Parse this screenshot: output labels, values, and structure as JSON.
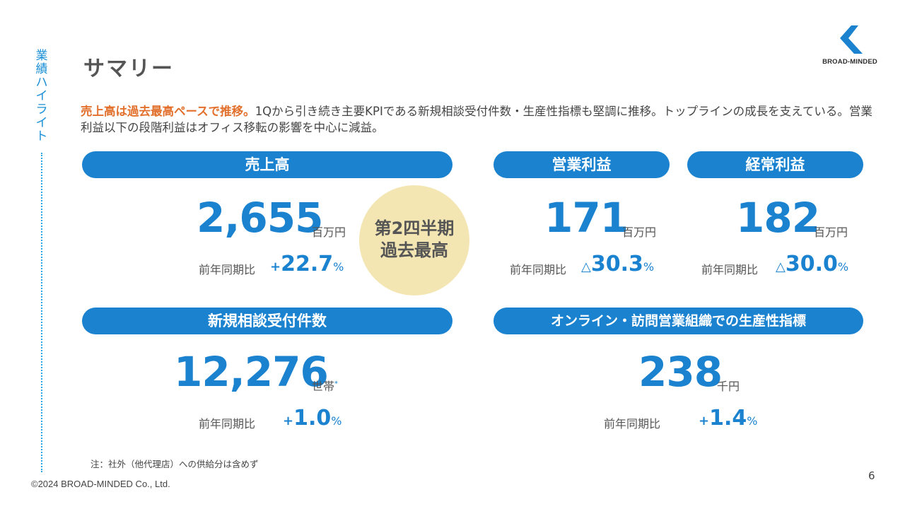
{
  "side": {
    "label_chars": [
      "業",
      "績",
      "ハ",
      "イ",
      "ラ",
      "イ",
      "ト"
    ]
  },
  "page_title": "サマリー",
  "logo": {
    "text": "BROAD-MINDED",
    "color": "#1a82cf"
  },
  "summary": {
    "highlight": "売上高は過去最高ペースで推移。",
    "text": "1Qから引き続き主要KPIである新規相談受付件数・生産性指標も堅調に推移。トップラインの成長を支えている。営業利益以下の段階利益はオフィス移転の影響を中心に減益。"
  },
  "metrics": {
    "sales": {
      "title": "売上高",
      "value": "2,655",
      "unit": "百万円",
      "yoy_label": "前年同期比",
      "sign": "+",
      "change": "22.7",
      "pct": "%"
    },
    "operating_profit": {
      "title": "営業利益",
      "value": "171",
      "unit": "百万円",
      "yoy_label": "前年同期比",
      "sign": "△",
      "change": "30.3",
      "pct": "%"
    },
    "ordinary_profit": {
      "title": "経常利益",
      "value": "182",
      "unit": "百万円",
      "yoy_label": "前年同期比",
      "sign": "△",
      "change": "30.0",
      "pct": "%"
    },
    "new_consultations": {
      "title": "新規相談受付件数",
      "value": "12,276",
      "unit": "世帯",
      "unit_mark": "*",
      "yoy_label": "前年同期比",
      "sign": "+",
      "change": "1.0",
      "pct": "%"
    },
    "productivity": {
      "title": "オンライン・訪問営業組織での生産性指標",
      "value": "238",
      "unit": "千円",
      "yoy_label": "前年同期比",
      "sign": "+",
      "change": "1.4",
      "pct": "%"
    }
  },
  "badge": {
    "line1": "第2四半期",
    "line2": "過去最高"
  },
  "note": "注：社外（他代理店）への供給分は含めず",
  "copyright": "©2024 BROAD-MINDED Co., Ltd.",
  "page_number": "6",
  "colors": {
    "accent": "#1a82cf",
    "highlight": "#e2702c",
    "badge_bg": "#f3e6b3"
  }
}
